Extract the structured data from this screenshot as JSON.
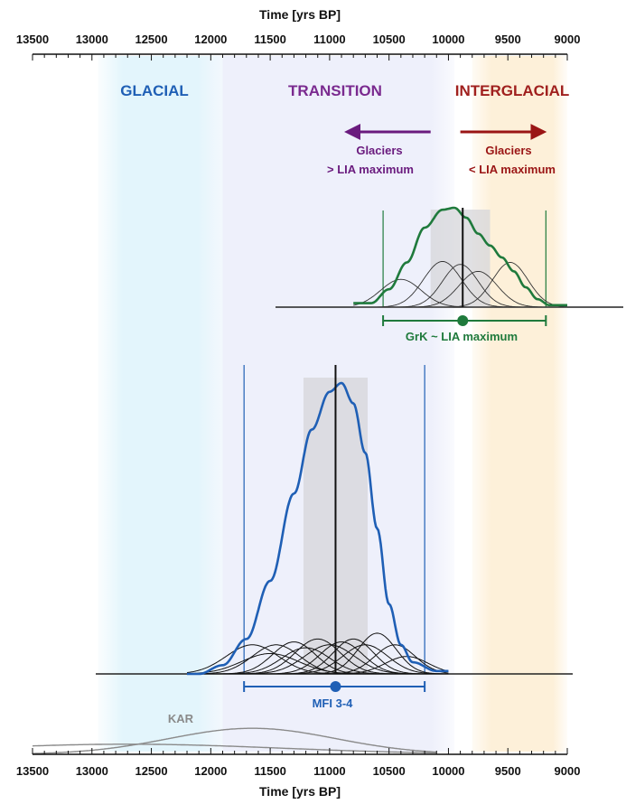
{
  "chart_data": {
    "type": "line",
    "x_axis": {
      "label": "Time [yrs BP]",
      "range": [
        13500,
        9000
      ],
      "reversed": true,
      "major_ticks": [
        13500,
        13000,
        12500,
        12000,
        11500,
        11000,
        10500,
        10000,
        9500,
        9000
      ],
      "minor_tick_step": 100
    },
    "periods": [
      {
        "name": "GLACIAL",
        "from": 12950,
        "to": 11900,
        "color": "#1f5fb5",
        "band": "#dff2fb"
      },
      {
        "name": "TRANSITION",
        "from": 11900,
        "to": 9950,
        "color": "#7a2a8f",
        "band": "#eef0fb"
      },
      {
        "name": "INTERGLACIAL",
        "from": 9800,
        "to": 9000,
        "color": "#a0201e",
        "band": "#fdf1dc"
      }
    ],
    "arrows": [
      {
        "direction": "older",
        "label_lines": [
          "Glaciers",
          "> LIA maximum"
        ],
        "color": "#6a1b7e",
        "from": 10150,
        "to": 10850
      },
      {
        "direction": "younger",
        "label_lines": [
          "Glaciers",
          "< LIA maximum"
        ],
        "color": "#9a1515",
        "from": 9900,
        "to": 9200
      }
    ],
    "groups": [
      {
        "name": "GrK ~ LIA maximum",
        "color": "#1f7a3c",
        "mean": 9880,
        "range": [
          10550,
          9180
        ],
        "shade": [
          10150,
          9650
        ],
        "summed_curve": [
          [
            10650,
            0.04
          ],
          [
            10500,
            0.18
          ],
          [
            10350,
            0.45
          ],
          [
            10200,
            0.8
          ],
          [
            10050,
            0.98
          ],
          [
            9950,
            1.0
          ],
          [
            9850,
            0.9
          ],
          [
            9750,
            0.74
          ],
          [
            9650,
            0.62
          ],
          [
            9550,
            0.5
          ],
          [
            9450,
            0.36
          ],
          [
            9350,
            0.2
          ],
          [
            9250,
            0.08
          ],
          [
            9150,
            0.02
          ]
        ],
        "component_peaks": [
          {
            "center": 10400,
            "width": 170,
            "height": 0.28
          },
          {
            "center": 10050,
            "width": 160,
            "height": 0.46
          },
          {
            "center": 9900,
            "width": 150,
            "height": 0.43
          },
          {
            "center": 9750,
            "width": 160,
            "height": 0.36
          },
          {
            "center": 9480,
            "width": 150,
            "height": 0.45
          }
        ]
      },
      {
        "name": "MFI 3-4",
        "color": "#1f5fb5",
        "mean": 10950,
        "range": [
          11720,
          10200
        ],
        "shade": [
          11220,
          10680
        ],
        "summed_curve": [
          [
            12100,
            0.0
          ],
          [
            11900,
            0.03
          ],
          [
            11700,
            0.12
          ],
          [
            11500,
            0.32
          ],
          [
            11300,
            0.62
          ],
          [
            11150,
            0.84
          ],
          [
            11000,
            0.97
          ],
          [
            10900,
            1.0
          ],
          [
            10800,
            0.93
          ],
          [
            10700,
            0.76
          ],
          [
            10600,
            0.5
          ],
          [
            10500,
            0.24
          ],
          [
            10400,
            0.1
          ],
          [
            10300,
            0.04
          ],
          [
            10100,
            0.01
          ]
        ],
        "component_peaks": [
          {
            "center": 11650,
            "width": 220,
            "height": 0.1
          },
          {
            "center": 11450,
            "width": 200,
            "height": 0.1
          },
          {
            "center": 11300,
            "width": 180,
            "height": 0.11
          },
          {
            "center": 11200,
            "width": 200,
            "height": 0.09
          },
          {
            "center": 11100,
            "width": 190,
            "height": 0.12
          },
          {
            "center": 11000,
            "width": 210,
            "height": 0.1
          },
          {
            "center": 10900,
            "width": 180,
            "height": 0.11
          },
          {
            "center": 10800,
            "width": 170,
            "height": 0.12
          },
          {
            "center": 10700,
            "width": 190,
            "height": 0.1
          },
          {
            "center": 10600,
            "width": 160,
            "height": 0.14
          },
          {
            "center": 10450,
            "width": 170,
            "height": 0.1
          },
          {
            "center": 11500,
            "width": 240,
            "height": 0.07
          },
          {
            "center": 10350,
            "width": 180,
            "height": 0.06
          }
        ]
      },
      {
        "name": "KAR",
        "color": "#8a8a8a",
        "component_peaks": [
          {
            "center": 12700,
            "width": 1300,
            "height": 0.14
          },
          {
            "center": 11650,
            "width": 700,
            "height": 0.36
          }
        ]
      }
    ]
  }
}
